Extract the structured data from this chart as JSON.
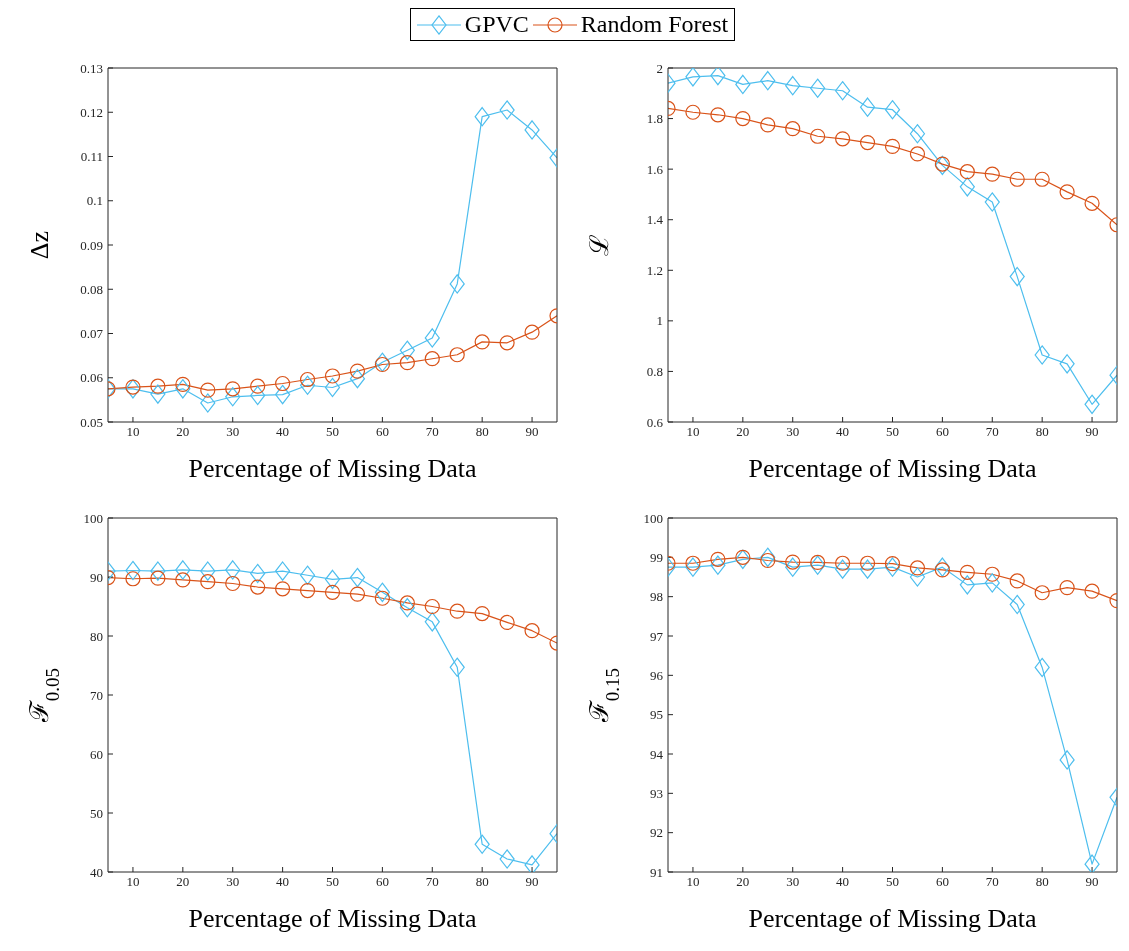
{
  "chart_data": [
    {
      "type": "line",
      "xlabel": "Percentage of Missing Data",
      "ylabel": "Δz",
      "legend": "top",
      "x": [
        5,
        10,
        15,
        20,
        25,
        30,
        35,
        40,
        45,
        50,
        55,
        60,
        65,
        70,
        75,
        80,
        85,
        90,
        95
      ],
      "xlim": [
        5,
        95
      ],
      "xticks": [
        10,
        20,
        30,
        40,
        50,
        60,
        70,
        80,
        90
      ],
      "ylim": [
        0.05,
        0.13
      ],
      "yticks": [
        0.05,
        0.06,
        0.07,
        0.08,
        0.09,
        0.1,
        0.11,
        0.12,
        0.13
      ],
      "grid": false,
      "line_style": "solid",
      "series": [
        {
          "name": "GPVC",
          "color": "#4dbeee",
          "marker": "diamond",
          "values": [
            0.0575,
            0.0575,
            0.0563,
            0.0575,
            0.0543,
            0.0557,
            0.056,
            0.0562,
            0.0583,
            0.0578,
            0.0598,
            0.0635,
            0.0662,
            0.069,
            0.0812,
            0.119,
            0.1205,
            0.116,
            0.1097
          ]
        },
        {
          "name": "Random Forest",
          "color": "#d95319",
          "marker": "circle",
          "values": [
            0.0575,
            0.0579,
            0.0581,
            0.0585,
            0.0572,
            0.0575,
            0.0581,
            0.0587,
            0.0596,
            0.0604,
            0.0615,
            0.063,
            0.0634,
            0.0643,
            0.0652,
            0.0681,
            0.0679,
            0.0703,
            0.074
          ]
        }
      ]
    },
    {
      "type": "line",
      "xlabel": "Percentage of Missing Data",
      "ylabel": "ℒ",
      "x": [
        5,
        10,
        15,
        20,
        25,
        30,
        35,
        40,
        45,
        50,
        55,
        60,
        65,
        70,
        75,
        80,
        85,
        90,
        95
      ],
      "xlim": [
        5,
        95
      ],
      "xticks": [
        10,
        20,
        30,
        40,
        50,
        60,
        70,
        80,
        90
      ],
      "ylim": [
        0.6,
        2
      ],
      "yticks": [
        0.6,
        0.8,
        1,
        1.2,
        1.4,
        1.6,
        1.8,
        2
      ],
      "grid": false,
      "line_style": "solid",
      "series": [
        {
          "color": "#4dbeee",
          "marker": "diamond",
          "values": [
            1.94,
            1.965,
            1.97,
            1.935,
            1.95,
            1.93,
            1.92,
            1.91,
            1.845,
            1.835,
            1.74,
            1.615,
            1.53,
            1.47,
            1.175,
            0.865,
            0.83,
            0.67,
            0.785
          ]
        },
        {
          "color": "#d95319",
          "marker": "circle",
          "values": [
            1.84,
            1.825,
            1.815,
            1.8,
            1.775,
            1.76,
            1.73,
            1.72,
            1.705,
            1.69,
            1.66,
            1.62,
            1.59,
            1.58,
            1.56,
            1.56,
            1.51,
            1.465,
            1.38
          ]
        }
      ]
    },
    {
      "type": "line",
      "xlabel": "Percentage of Missing Data",
      "ylabel": "ℱ$_{0.05}$",
      "x": [
        5,
        10,
        15,
        20,
        25,
        30,
        35,
        40,
        45,
        50,
        55,
        60,
        65,
        70,
        75,
        80,
        85,
        90,
        95
      ],
      "xlim": [
        5,
        95
      ],
      "xticks": [
        10,
        20,
        30,
        40,
        50,
        60,
        70,
        80,
        90
      ],
      "ylim": [
        40,
        100
      ],
      "yticks": [
        40,
        50,
        60,
        70,
        80,
        90,
        100
      ],
      "grid": false,
      "line_style": "solid",
      "series": [
        {
          "color": "#4dbeee",
          "marker": "diamond",
          "values": [
            91,
            91.1,
            91,
            91.2,
            91,
            91.2,
            90.6,
            91,
            90.3,
            89.6,
            89.9,
            87.4,
            84.8,
            82.4,
            74.7,
            44.7,
            42.2,
            41.2,
            46.5
          ]
        },
        {
          "color": "#d95319",
          "marker": "circle",
          "values": [
            89.9,
            89.7,
            89.8,
            89.5,
            89.2,
            88.9,
            88.3,
            88,
            87.7,
            87.4,
            87.1,
            86.4,
            85.6,
            85,
            84.2,
            83.8,
            82.3,
            80.9,
            78.8
          ]
        }
      ]
    },
    {
      "type": "line",
      "xlabel": "Percentage of Missing Data",
      "ylabel": "ℱ$_{0.15}$",
      "x": [
        5,
        10,
        15,
        20,
        25,
        30,
        35,
        40,
        45,
        50,
        55,
        60,
        65,
        70,
        75,
        80,
        85,
        90,
        95
      ],
      "xlim": [
        5,
        95
      ],
      "xticks": [
        10,
        20,
        30,
        40,
        50,
        60,
        70,
        80,
        90
      ],
      "ylim": [
        91,
        100
      ],
      "yticks": [
        91,
        92,
        93,
        94,
        95,
        96,
        97,
        98,
        99,
        100
      ],
      "grid": false,
      "line_style": "solid",
      "series": [
        {
          "color": "#4dbeee",
          "marker": "diamond",
          "values": [
            98.75,
            98.75,
            98.8,
            98.95,
            99,
            98.75,
            98.8,
            98.7,
            98.7,
            98.75,
            98.5,
            98.75,
            98.3,
            98.35,
            97.8,
            96.2,
            93.85,
            91.2,
            92.9
          ]
        },
        {
          "color": "#d95319",
          "marker": "circle",
          "values": [
            98.85,
            98.85,
            98.95,
            99,
            98.92,
            98.88,
            98.87,
            98.85,
            98.85,
            98.84,
            98.73,
            98.68,
            98.62,
            98.57,
            98.4,
            98.1,
            98.23,
            98.14,
            97.9
          ]
        }
      ]
    }
  ]
}
